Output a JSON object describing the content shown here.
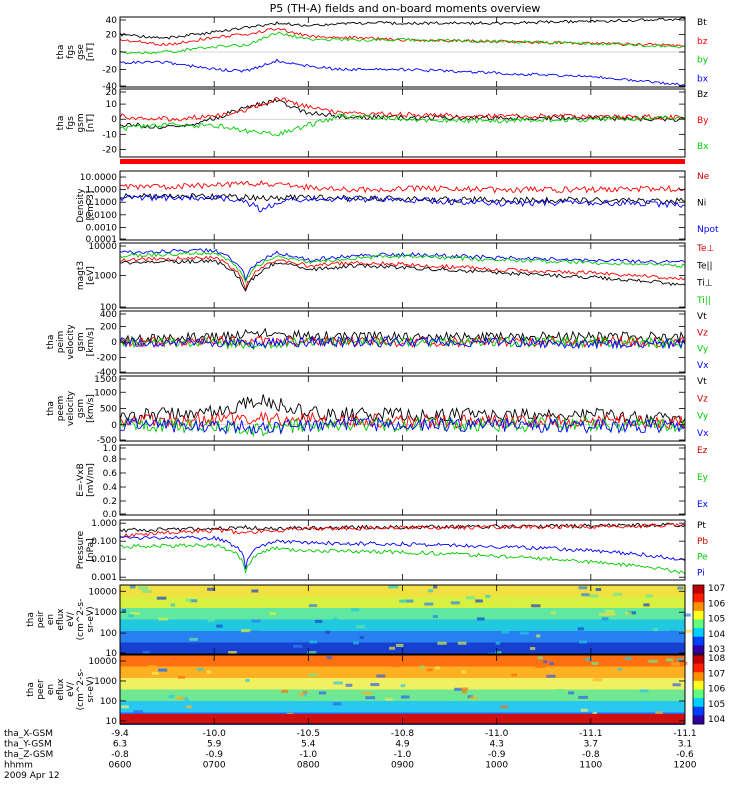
{
  "title": "P5 (TH-A) fields and on-board moments overview",
  "chart_data": [
    {
      "type": "line",
      "ylabel": [
        "tha",
        "fgs",
        "gse",
        "[nT]"
      ],
      "ylim": [
        -40,
        40
      ],
      "ticks": [
        40,
        20,
        0,
        -20,
        -40
      ],
      "legend": [
        {
          "name": "Bt",
          "color": "#000000"
        },
        {
          "name": "bz",
          "color": "#ff0000"
        },
        {
          "name": "by",
          "color": "#00cc00"
        },
        {
          "name": "bx",
          "color": "#0000ff"
        }
      ],
      "series": [
        {
          "name": "Bt",
          "color": "#000000",
          "x": [
            "06:00",
            "06:30",
            "07:00",
            "07:20",
            "07:40",
            "08:00",
            "08:20",
            "09:00",
            "10:00",
            "11:00",
            "12:00"
          ],
          "values": [
            20,
            16,
            23,
            28,
            33,
            30,
            33,
            33,
            33,
            35,
            38
          ]
        },
        {
          "name": "bz",
          "color": "#ff0000",
          "x": [
            "06:00",
            "06:30",
            "07:00",
            "07:20",
            "07:40",
            "08:00",
            "08:20",
            "09:00",
            "10:00",
            "11:00",
            "12:00"
          ],
          "values": [
            14,
            8,
            17,
            20,
            27,
            18,
            17,
            14,
            12,
            10,
            7
          ]
        },
        {
          "name": "by",
          "color": "#00cc00",
          "x": [
            "06:00",
            "06:30",
            "07:00",
            "07:20",
            "07:40",
            "08:00",
            "08:20",
            "09:00",
            "10:00",
            "11:00",
            "12:00"
          ],
          "values": [
            -1,
            0,
            6,
            8,
            22,
            15,
            14,
            14,
            12,
            10,
            6
          ]
        },
        {
          "name": "bx",
          "color": "#0000ff",
          "x": [
            "06:00",
            "06:30",
            "07:00",
            "07:20",
            "07:40",
            "08:00",
            "08:20",
            "09:00",
            "10:00",
            "11:00",
            "12:00"
          ],
          "values": [
            -12,
            -12,
            -20,
            -22,
            -10,
            -16,
            -20,
            -20,
            -24,
            -28,
            -38
          ]
        }
      ]
    },
    {
      "type": "line",
      "ylabel": [
        "tha",
        "fgs",
        "gsm",
        "[nT]"
      ],
      "ylim": [
        -25,
        20
      ],
      "ticks": [
        20,
        10,
        0,
        -10,
        -20
      ],
      "legend": [
        {
          "name": "Bz",
          "color": "#000000"
        },
        {
          "name": "By",
          "color": "#ff0000"
        },
        {
          "name": "Bx",
          "color": "#00cc00"
        }
      ],
      "series": [
        {
          "name": "Bz",
          "color": "#000000",
          "x": [
            "06:00",
            "06:30",
            "07:00",
            "07:20",
            "07:40",
            "08:00",
            "08:20",
            "09:00",
            "10:00",
            "11:00",
            "12:00"
          ],
          "values": [
            -3,
            -6,
            0,
            8,
            12,
            4,
            2,
            1,
            1,
            1,
            0
          ]
        },
        {
          "name": "By",
          "color": "#ff0000",
          "x": [
            "06:00",
            "06:30",
            "07:00",
            "07:20",
            "07:40",
            "08:00",
            "08:20",
            "09:00",
            "10:00",
            "11:00",
            "12:00"
          ],
          "values": [
            2,
            0,
            2,
            6,
            14,
            8,
            4,
            3,
            2,
            2,
            1
          ]
        },
        {
          "name": "Bx",
          "color": "#00cc00",
          "x": [
            "06:00",
            "06:30",
            "07:00",
            "07:20",
            "07:40",
            "08:00",
            "08:20",
            "09:00",
            "10:00",
            "11:00",
            "12:00"
          ],
          "values": [
            -6,
            -4,
            -4,
            -8,
            -10,
            -4,
            2,
            0,
            -1,
            0,
            1
          ]
        }
      ]
    },
    {
      "type": "line",
      "ylabel": [
        "Density",
        "[cm-3]"
      ],
      "yscale": "log",
      "ylim": [
        0.0001,
        30
      ],
      "ticks": [
        "10.0000",
        "1.0000",
        "0.1000",
        "0.0100",
        "0.0010",
        "0.0001"
      ],
      "legend": [
        {
          "name": "Ne",
          "color": "#cc0000"
        },
        {
          "name": "Ni",
          "color": "#000000"
        },
        {
          "name": "Npot",
          "color": "#0000ff"
        }
      ],
      "series": [
        {
          "name": "Ne",
          "color": "#ff0000",
          "x": [
            "06:00",
            "07:00",
            "07:30",
            "08:00",
            "08:30",
            "09:00",
            "10:00",
            "11:00",
            "12:00"
          ],
          "values": [
            1.5,
            2.0,
            3.0,
            1.5,
            1.0,
            1.2,
            1.0,
            1.0,
            1.2
          ]
        },
        {
          "name": "Ni",
          "color": "#000000",
          "x": [
            "06:00",
            "07:00",
            "07:30",
            "08:00",
            "08:30",
            "09:00",
            "10:00",
            "11:00",
            "12:00"
          ],
          "values": [
            0.3,
            0.3,
            0.2,
            0.25,
            0.2,
            0.18,
            0.15,
            0.15,
            0.12
          ]
        },
        {
          "name": "Npot",
          "color": "#0000ff",
          "x": [
            "06:00",
            "07:00",
            "07:30",
            "08:00",
            "08:30",
            "09:00",
            "10:00",
            "11:00",
            "12:00"
          ],
          "values": [
            0.2,
            0.25,
            0.02,
            0.2,
            0.18,
            0.15,
            0.08,
            0.1,
            0.06
          ]
        }
      ]
    },
    {
      "type": "line",
      "ylabel": [
        "magt3",
        "[eV]"
      ],
      "yscale": "log",
      "ylim": [
        100,
        10000
      ],
      "ticks": [
        "10000",
        "1000",
        "100"
      ],
      "legend": [
        {
          "name": "Te⊥",
          "color": "#cc0000"
        },
        {
          "name": "Te||",
          "color": "#000000"
        },
        {
          "name": "Ti⊥",
          "color": "#000000"
        },
        {
          "name": "Ti||",
          "color": "#00cc00"
        }
      ],
      "series": [
        {
          "name": "Ti⊥",
          "color": "#0000ff",
          "x": [
            "06:00",
            "07:00",
            "07:20",
            "07:40",
            "08:00",
            "08:30",
            "09:00",
            "10:00",
            "11:00",
            "12:00"
          ],
          "values": [
            5000,
            6000,
            800,
            5000,
            3000,
            4000,
            4500,
            3500,
            3000,
            2500
          ]
        },
        {
          "name": "Ti||",
          "color": "#00cc00",
          "x": [
            "06:00",
            "07:00",
            "07:20",
            "07:40",
            "08:00",
            "08:30",
            "09:00",
            "10:00",
            "11:00",
            "12:00"
          ],
          "values": [
            4000,
            5000,
            600,
            4000,
            2500,
            3500,
            4000,
            3000,
            2500,
            2000
          ]
        },
        {
          "name": "Te⊥",
          "color": "#ff0000",
          "x": [
            "06:00",
            "07:00",
            "07:20",
            "07:40",
            "08:00",
            "08:30",
            "09:00",
            "10:00",
            "11:00",
            "12:00"
          ],
          "values": [
            3000,
            3500,
            400,
            3000,
            2000,
            2500,
            2200,
            1500,
            1200,
            800
          ]
        },
        {
          "name": "Te||",
          "color": "#000000",
          "x": [
            "06:00",
            "07:00",
            "07:20",
            "07:40",
            "08:00",
            "08:30",
            "09:00",
            "10:00",
            "11:00",
            "12:00"
          ],
          "values": [
            2500,
            2800,
            300,
            2500,
            1500,
            2000,
            1800,
            1200,
            900,
            500
          ]
        }
      ]
    },
    {
      "type": "line",
      "ylabel": [
        "tha",
        "peim",
        "velocity",
        "gsm",
        "[km/s]"
      ],
      "ylim": [
        -400,
        400
      ],
      "ticks": [
        400,
        200,
        0,
        -200,
        -400
      ],
      "legend": [
        {
          "name": "Vt",
          "color": "#000000"
        },
        {
          "name": "Vz",
          "color": "#cc0000"
        },
        {
          "name": "Vy",
          "color": "#00cc00"
        },
        {
          "name": "Vx",
          "color": "#0000ff"
        }
      ],
      "series": [
        {
          "name": "Vt",
          "color": "#000000",
          "x": [
            "06:00",
            "07:00",
            "07:30",
            "08:00",
            "09:00",
            "10:00",
            "11:00",
            "12:00"
          ],
          "values": [
            40,
            60,
            120,
            80,
            60,
            60,
            70,
            60
          ]
        },
        {
          "name": "Vz",
          "color": "#ff0000",
          "x": [
            "06:00",
            "07:00",
            "07:30",
            "08:00",
            "09:00",
            "10:00",
            "11:00",
            "12:00"
          ],
          "values": [
            0,
            10,
            20,
            0,
            0,
            0,
            0,
            0
          ]
        },
        {
          "name": "Vy",
          "color": "#00cc00",
          "x": [
            "06:00",
            "07:00",
            "07:30",
            "08:00",
            "09:00",
            "10:00",
            "11:00",
            "12:00"
          ],
          "values": [
            0,
            -10,
            -40,
            0,
            0,
            0,
            0,
            -20
          ]
        },
        {
          "name": "Vx",
          "color": "#0000ff",
          "x": [
            "06:00",
            "07:00",
            "07:30",
            "08:00",
            "09:00",
            "10:00",
            "11:00",
            "12:00"
          ],
          "values": [
            0,
            0,
            -20,
            0,
            0,
            0,
            -20,
            -30
          ]
        }
      ]
    },
    {
      "type": "line",
      "ylabel": [
        "tha",
        "peem",
        "velocity",
        "gsm",
        "[km/s]"
      ],
      "ylim": [
        -500,
        1500
      ],
      "ticks": [
        1500,
        1000,
        500,
        0,
        -500
      ],
      "legend": [
        {
          "name": "Vt",
          "color": "#000000"
        },
        {
          "name": "Vz",
          "color": "#cc0000"
        },
        {
          "name": "Vy",
          "color": "#00cc00"
        },
        {
          "name": "Vx",
          "color": "#0000ff"
        }
      ],
      "series": [
        {
          "name": "Vt",
          "color": "#000000",
          "x": [
            "06:00",
            "07:00",
            "07:30",
            "08:00",
            "09:00",
            "10:00",
            "11:00",
            "12:00"
          ],
          "values": [
            250,
            400,
            800,
            350,
            300,
            300,
            300,
            200
          ]
        },
        {
          "name": "Vz",
          "color": "#ff0000",
          "x": [
            "06:00",
            "07:00",
            "07:30",
            "08:00",
            "09:00",
            "10:00",
            "11:00",
            "12:00"
          ],
          "values": [
            150,
            150,
            200,
            150,
            100,
            100,
            100,
            80
          ]
        },
        {
          "name": "Vy",
          "color": "#00cc00",
          "x": [
            "06:00",
            "07:00",
            "07:30",
            "08:00",
            "09:00",
            "10:00",
            "11:00",
            "12:00"
          ],
          "values": [
            0,
            -50,
            -150,
            0,
            0,
            0,
            0,
            -50
          ]
        },
        {
          "name": "Vx",
          "color": "#0000ff",
          "x": [
            "06:00",
            "07:00",
            "07:30",
            "08:00",
            "09:00",
            "10:00",
            "11:00",
            "12:00"
          ],
          "values": [
            0,
            -50,
            -100,
            0,
            0,
            0,
            -50,
            -60
          ]
        }
      ]
    },
    {
      "type": "line",
      "ylabel": [
        "E=-VxB",
        "[mV/m]"
      ],
      "ylim": [
        0.0,
        1.0
      ],
      "ticks": [
        "1.0",
        "0.8",
        "0.6",
        "0.4",
        "0.2",
        "0.0"
      ],
      "legend": [
        {
          "name": "Ez",
          "color": "#cc0000"
        },
        {
          "name": "Ey",
          "color": "#00cc00"
        },
        {
          "name": "Ex",
          "color": "#0000ff"
        }
      ],
      "series": []
    },
    {
      "type": "line",
      "ylabel": [
        "Pressure",
        "[nPa]"
      ],
      "yscale": "log",
      "ylim": [
        0.0007,
        1.5
      ],
      "ticks": [
        "1.000",
        "0.100",
        "0.010",
        "0.001"
      ],
      "legend": [
        {
          "name": "Pt",
          "color": "#000000"
        },
        {
          "name": "Pb",
          "color": "#cc0000"
        },
        {
          "name": "Pe",
          "color": "#00cc00"
        },
        {
          "name": "Pi",
          "color": "#0000ff"
        }
      ],
      "series": [
        {
          "name": "Pt",
          "color": "#000000",
          "x": [
            "06:00",
            "07:00",
            "07:20",
            "07:40",
            "08:00",
            "09:00",
            "10:00",
            "11:00",
            "12:00"
          ],
          "values": [
            0.4,
            0.5,
            0.6,
            0.5,
            0.55,
            0.6,
            0.65,
            0.7,
            0.8
          ]
        },
        {
          "name": "Pb",
          "color": "#ff0000",
          "x": [
            "06:00",
            "07:00",
            "07:20",
            "07:40",
            "08:00",
            "09:00",
            "10:00",
            "11:00",
            "12:00"
          ],
          "values": [
            0.2,
            0.4,
            0.3,
            0.4,
            0.5,
            0.55,
            0.6,
            0.65,
            0.75
          ]
        },
        {
          "name": "Pi",
          "color": "#0000ff",
          "x": [
            "06:00",
            "07:00",
            "07:20",
            "07:40",
            "08:00",
            "09:00",
            "10:00",
            "11:00",
            "12:00"
          ],
          "values": [
            0.15,
            0.15,
            0.003,
            0.1,
            0.08,
            0.07,
            0.05,
            0.03,
            0.008
          ]
        },
        {
          "name": "Pe",
          "color": "#00cc00",
          "x": [
            "06:00",
            "07:00",
            "07:20",
            "07:40",
            "08:00",
            "09:00",
            "10:00",
            "11:00",
            "12:00"
          ],
          "values": [
            0.05,
            0.06,
            0.002,
            0.04,
            0.03,
            0.025,
            0.015,
            0.007,
            0.0015
          ]
        }
      ]
    },
    {
      "type": "heatmap",
      "ylabel": [
        "tha",
        "peir",
        "en",
        "eflux",
        "eV/",
        "(cm^2-s-",
        "sr-eV)"
      ],
      "yscale": "log",
      "ylim": [
        10,
        20000
      ],
      "ticks": [
        "10000",
        "1000",
        "100",
        "10"
      ],
      "colorbar": {
        "range": [
          "10^3",
          "10^7"
        ],
        "labels": [
          "10^7",
          "10^6",
          "10^5",
          "10^4",
          "10^3"
        ]
      }
    },
    {
      "type": "heatmap",
      "ylabel": [
        "tha",
        "peer",
        "en",
        "eflux",
        "eV/",
        "(cm^2-s-",
        "sr-eV)"
      ],
      "yscale": "log",
      "ylim": [
        7,
        20000
      ],
      "ticks": [
        "10000",
        "1000",
        "100",
        "10"
      ],
      "colorbar": {
        "range": [
          "10^4",
          "10^8"
        ],
        "labels": [
          "10^8",
          "10^7",
          "10^6",
          "10^5",
          "10^4"
        ]
      }
    }
  ],
  "x_axis": {
    "rows": [
      {
        "label": "tha_X-GSM",
        "values": [
          "-9.4",
          "-10.0",
          "-10.5",
          "-10.8",
          "-11.0",
          "-11.1",
          "-11.1"
        ]
      },
      {
        "label": "tha_Y-GSM",
        "values": [
          "6.3",
          "5.9",
          "5.4",
          "4.9",
          "4.3",
          "3.7",
          "3.1"
        ]
      },
      {
        "label": "tha_Z-GSM",
        "values": [
          "-0.8",
          "-0.9",
          "-1.0",
          "-1.0",
          "-0.9",
          "-0.8",
          "-0.6"
        ]
      },
      {
        "label": "hhmm",
        "values": [
          "0600",
          "0700",
          "0800",
          "0900",
          "1000",
          "1100",
          "1200"
        ]
      }
    ],
    "date": "2009 Apr 12"
  },
  "colors": {
    "red_bar": "#ff0000"
  }
}
